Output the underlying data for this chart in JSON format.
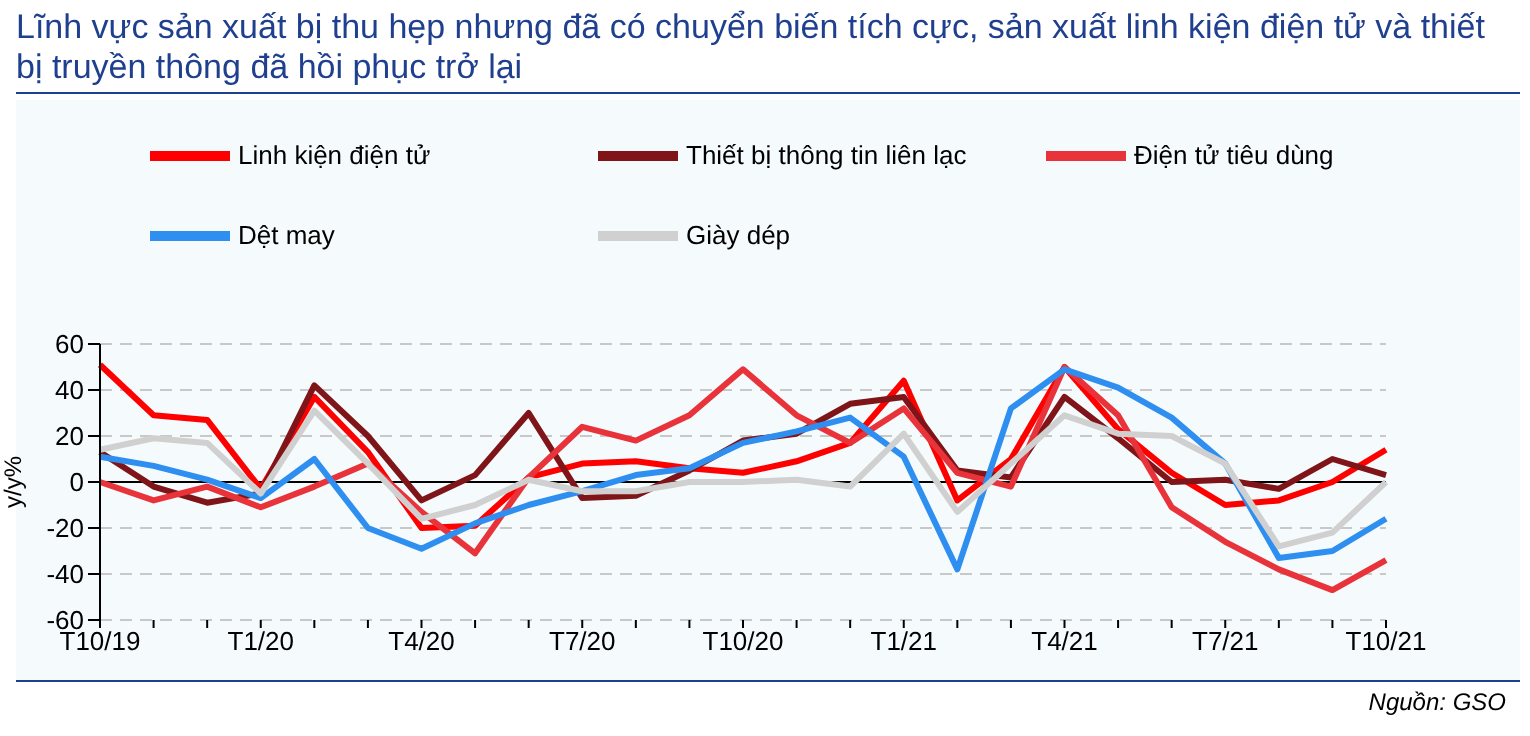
{
  "chart_data": {
    "type": "line",
    "title": "Lĩnh vực sản xuất bị thu hẹp nhưng đã có chuyển biến tích cực, sản xuất linh kiện điện tử và thiết bị truyền thông đã hồi phục trở lại",
    "ylabel": "y/y%",
    "annotations": [
      "Nguồn: GSO"
    ],
    "categories": [
      "T10/19",
      null,
      null,
      "T1/20",
      null,
      null,
      "T4/20",
      null,
      null,
      "T7/20",
      null,
      null,
      "T10/20",
      null,
      null,
      "T1/21",
      null,
      null,
      "T4/21",
      null,
      null,
      "T7/21",
      null,
      null,
      "T10/21"
    ],
    "series": [
      {
        "name": "Linh kiện điện tử",
        "color": "#ff0000",
        "values": [
          51,
          29,
          27,
          -3,
          37,
          13,
          -20,
          -19,
          2,
          8,
          9,
          6,
          4,
          9,
          17,
          44,
          -8,
          10,
          50,
          23,
          4,
          -10,
          -8,
          0,
          14
        ]
      },
      {
        "name": "Thiết bị thông tin liên lạc",
        "color": "#7f1518",
        "values": [
          13,
          -2,
          -9,
          -5,
          42,
          20,
          -8,
          3,
          30,
          -7,
          -6,
          5,
          18,
          21,
          34,
          37,
          5,
          2,
          37,
          19,
          0,
          1,
          -3,
          10,
          3
        ]
      },
      {
        "name": "Điện tử tiêu dùng",
        "color": "#e8333a",
        "values": [
          0,
          -8,
          -2,
          -11,
          -2,
          8,
          -13,
          -31,
          2,
          24,
          18,
          29,
          49,
          29,
          17,
          32,
          4,
          -2,
          50,
          29,
          -11,
          -26,
          -38,
          -47,
          -34
        ]
      },
      {
        "name": "Dệt may",
        "color": "#2e8ff0",
        "values": [
          11,
          7,
          1,
          -7,
          10,
          -20,
          -29,
          -18,
          -10,
          -4,
          3,
          6,
          17,
          22,
          28,
          11,
          -38,
          32,
          49,
          41,
          28,
          8,
          -33,
          -30,
          -16
        ]
      },
      {
        "name": "Giày dép",
        "color": "#d0d0d0",
        "values": [
          14,
          19,
          17,
          -5,
          31,
          8,
          -16,
          -10,
          1,
          -4,
          -4,
          0,
          0,
          1,
          -2,
          21,
          -13,
          8,
          29,
          21,
          20,
          8,
          -28,
          -22,
          0
        ]
      }
    ],
    "ylim": [
      -60,
      60
    ],
    "yticks": [
      -60,
      -40,
      -20,
      0,
      20,
      40,
      60
    ],
    "grid": "y",
    "legend": "top",
    "marker": "none",
    "line_style": "solid"
  }
}
